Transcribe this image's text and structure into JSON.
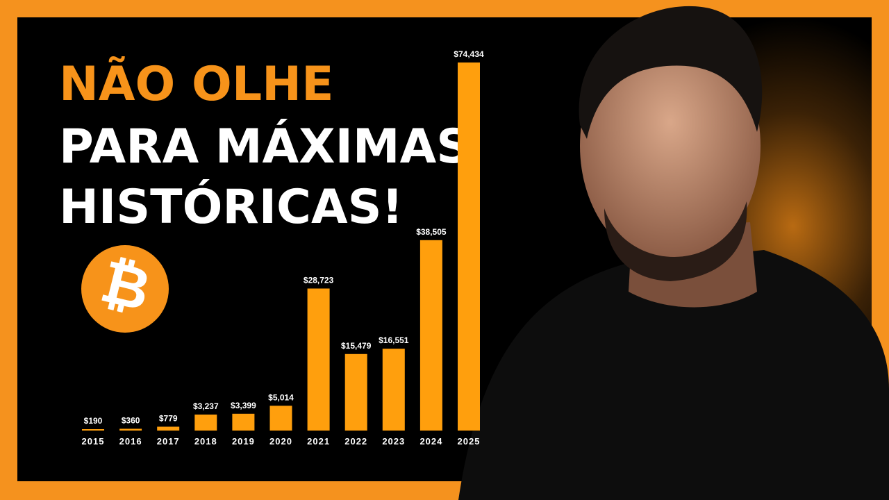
{
  "chart_data": {
    "type": "bar",
    "headline": [
      "NÃO OLHE",
      "PARA MÁXIMAS",
      "HISTÓRICAS!"
    ],
    "icon": "₿",
    "categories": [
      "2015",
      "2016",
      "2017",
      "2018",
      "2019",
      "2020",
      "2021",
      "2022",
      "2023",
      "2024",
      "2025"
    ],
    "values": [
      190,
      360,
      779,
      3237,
      3399,
      5014,
      28723,
      15479,
      16551,
      38505,
      74434
    ],
    "value_labels": [
      "$190",
      "$360",
      "$779",
      "$3,237",
      "$3,399",
      "$5,014",
      "$28,723",
      "$15,479",
      "$16,551",
      "$38,505",
      "$74,434"
    ],
    "color": "#ff9f0d"
  }
}
